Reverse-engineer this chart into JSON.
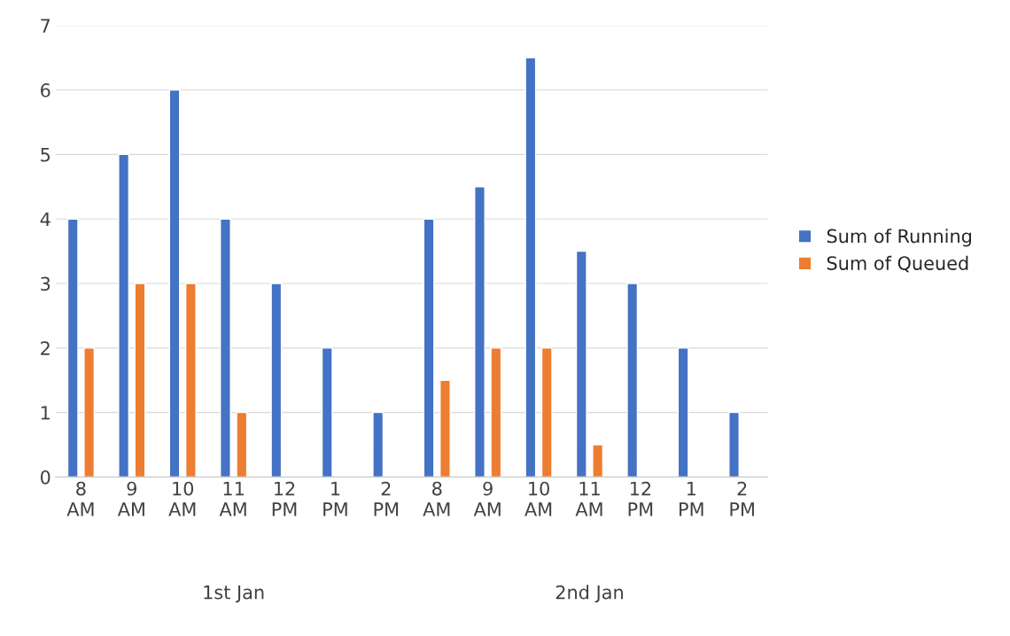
{
  "chart_data": {
    "type": "bar",
    "categories": [
      "8\nAM",
      "9\nAM",
      "10\nAM",
      "11\nAM",
      "12\nPM",
      "1\nPM",
      "2\nPM",
      "8\nAM",
      "9\nAM",
      "10\nAM",
      "11\nAM",
      "12\nPM",
      "1\nPM",
      "2\nPM"
    ],
    "series": [
      {
        "name": "Sum of Running",
        "color": "#4472c4",
        "values": [
          4,
          5,
          6,
          4,
          3,
          2,
          1,
          4,
          4.5,
          6.5,
          3.5,
          3,
          2,
          1
        ]
      },
      {
        "name": "Sum of Queued",
        "color": "#ed7d31",
        "values": [
          2,
          3,
          3,
          1,
          null,
          null,
          null,
          1.5,
          2,
          2,
          0.5,
          null,
          null,
          null
        ]
      }
    ],
    "annotations": [
      "1st Jan",
      "2nd Jan"
    ],
    "ylim": [
      0,
      7
    ],
    "yticks": [
      0,
      1,
      2,
      3,
      4,
      5,
      6,
      7
    ],
    "grid": "y",
    "legend": "right"
  }
}
